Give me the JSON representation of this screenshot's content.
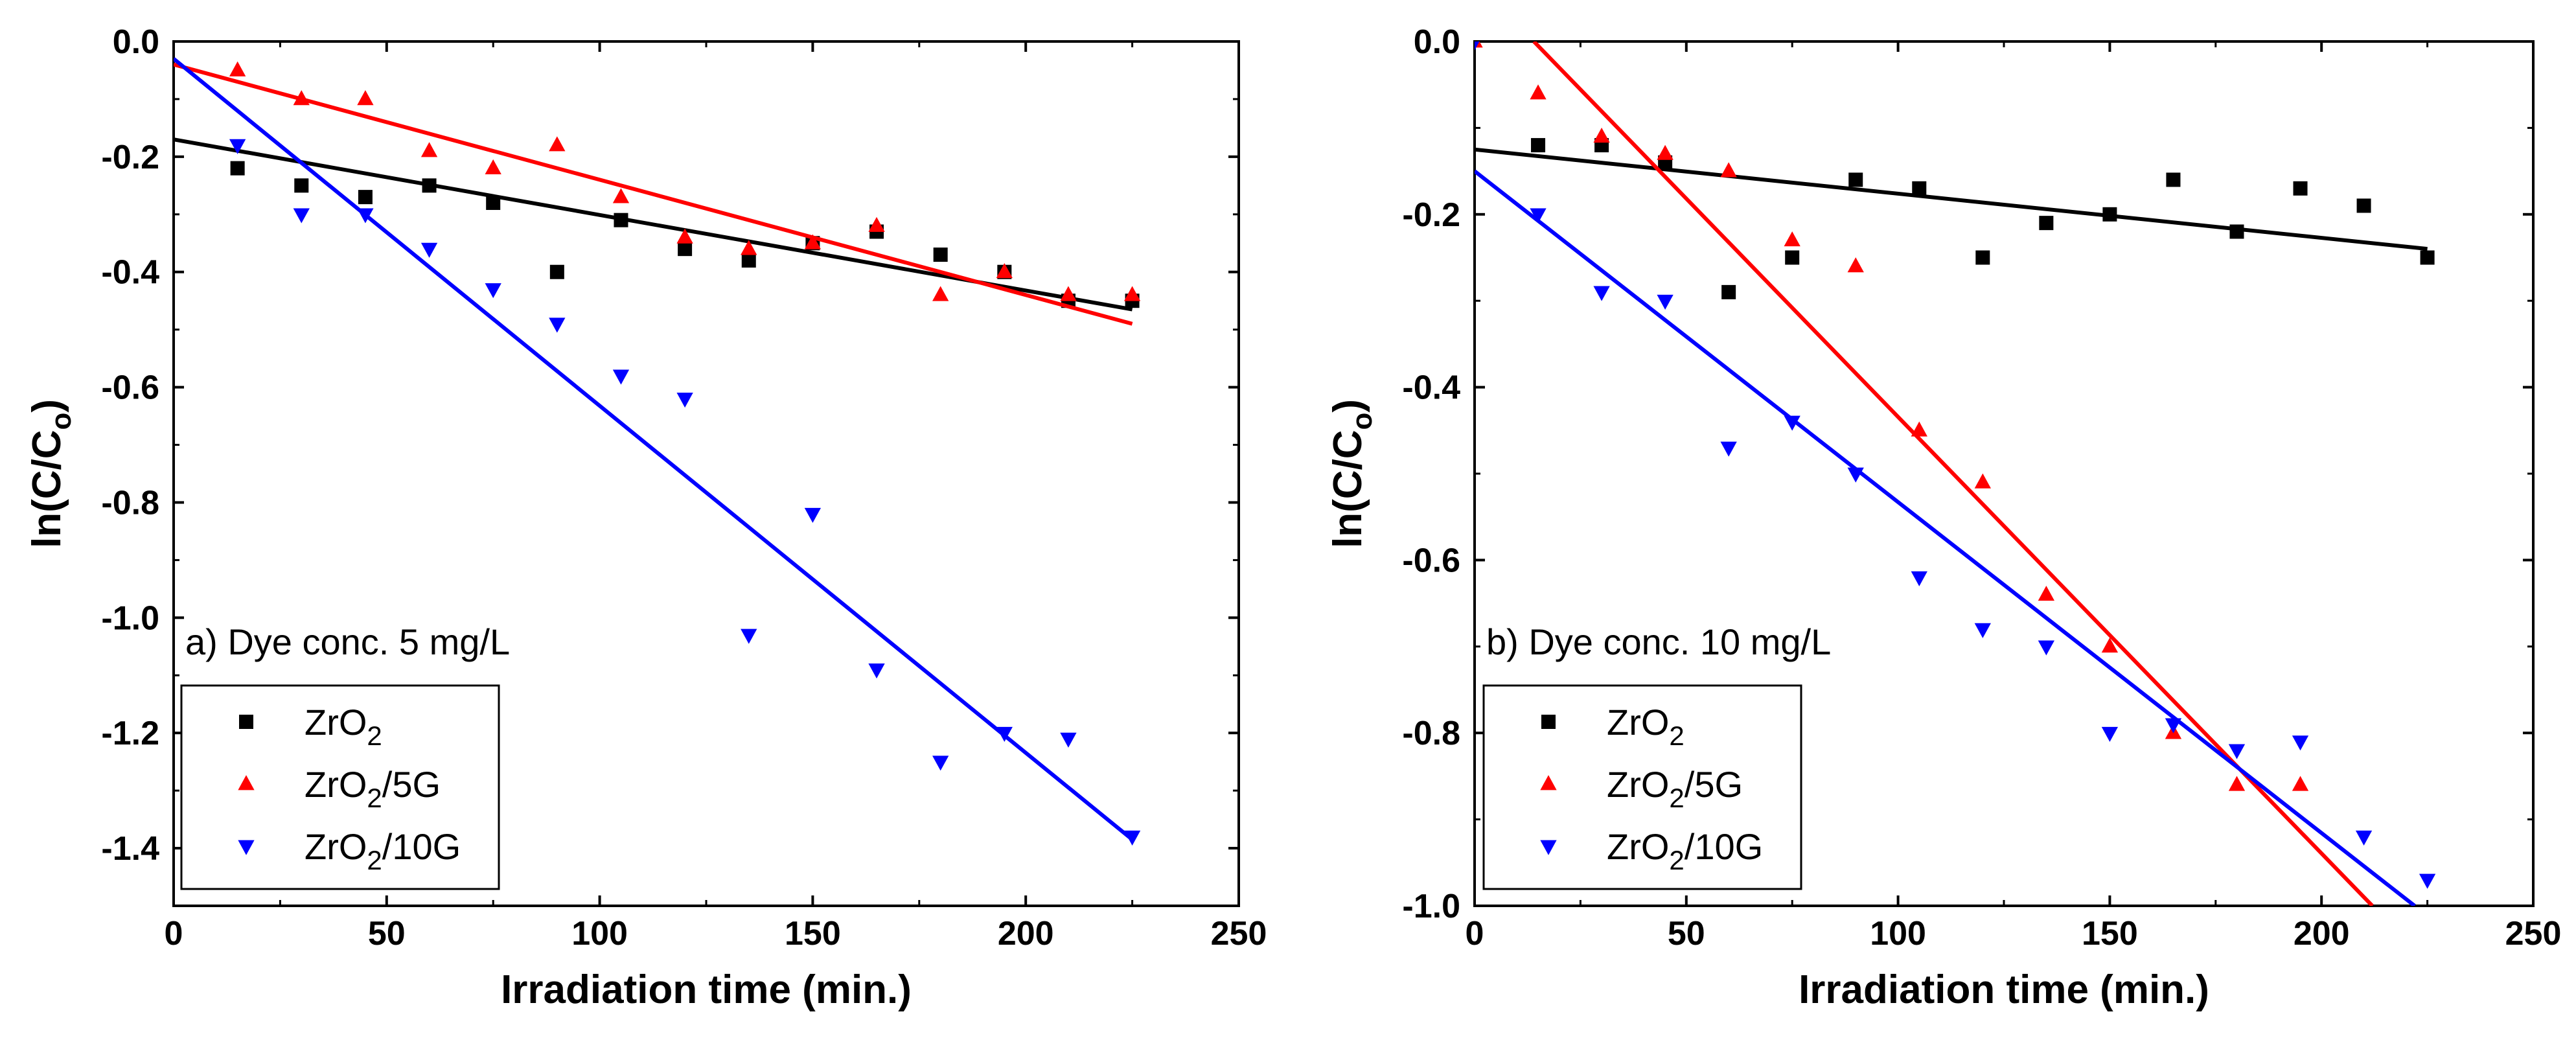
{
  "chart_data": [
    {
      "id": "a",
      "type": "scatter",
      "panel_label": "a) Dye conc. 5 mg/L",
      "xlabel": "Irradiation time (min.)",
      "ylabel": "ln(C/C",
      "ylabel_sub": "o",
      "ylabel_close": ")",
      "xlim": [
        0,
        250
      ],
      "ylim": [
        -1.5,
        0.0
      ],
      "xticks": [
        0,
        50,
        100,
        150,
        200,
        250
      ],
      "yticks": [
        0.0,
        -0.2,
        -0.4,
        -0.6,
        -0.8,
        -1.0,
        -1.2,
        -1.4
      ],
      "ytick_labels": [
        "0.0",
        "-0.2",
        "-0.4",
        "-0.6",
        "-0.8",
        "-1.0",
        "-1.2",
        "-1.4"
      ],
      "legend_position": "bottom-left",
      "series": [
        {
          "name": "ZrO",
          "name_sub": "2",
          "name_suffix": "",
          "color": "#000000",
          "marker": "square",
          "x": [
            15,
            30,
            45,
            60,
            75,
            90,
            105,
            120,
            135,
            150,
            165,
            180,
            195,
            210,
            225
          ],
          "y": [
            -0.22,
            -0.25,
            -0.27,
            -0.25,
            -0.28,
            -0.4,
            -0.31,
            -0.36,
            -0.38,
            -0.35,
            -0.33,
            -0.37,
            -0.4,
            -0.45,
            -0.45
          ],
          "fit": [
            [
              0,
              -0.17
            ],
            [
              225,
              -0.465
            ]
          ]
        },
        {
          "name": "ZrO",
          "name_sub": "2",
          "name_suffix": "/5G",
          "color": "#ff0000",
          "marker": "triangle-up",
          "x": [
            15,
            30,
            45,
            60,
            75,
            90,
            105,
            120,
            135,
            150,
            165,
            180,
            195,
            210,
            225
          ],
          "y": [
            -0.05,
            -0.1,
            -0.1,
            -0.19,
            -0.22,
            -0.18,
            -0.27,
            -0.34,
            -0.36,
            -0.35,
            -0.32,
            -0.44,
            -0.4,
            -0.44,
            -0.44
          ],
          "fit": [
            [
              0,
              -0.04
            ],
            [
              225,
              -0.49
            ]
          ]
        },
        {
          "name": "ZrO",
          "name_sub": "2",
          "name_suffix": "/10G",
          "color": "#0000ff",
          "marker": "triangle-down",
          "x": [
            15,
            30,
            45,
            60,
            75,
            90,
            105,
            120,
            135,
            150,
            165,
            180,
            195,
            210,
            225
          ],
          "y": [
            -0.18,
            -0.3,
            -0.3,
            -0.36,
            -0.43,
            -0.49,
            -0.58,
            -0.62,
            -1.03,
            -0.82,
            -1.09,
            -1.25,
            -1.2,
            -1.21,
            -1.38
          ],
          "fit": [
            [
              0,
              -0.03
            ],
            [
              225,
              -1.385
            ]
          ]
        }
      ]
    },
    {
      "id": "b",
      "type": "scatter",
      "panel_label": "b) Dye conc. 10 mg/L",
      "xlabel": "Irradiation time (min.)",
      "ylabel": "ln(C/C",
      "ylabel_sub": "o",
      "ylabel_close": ")",
      "xlim": [
        0,
        250
      ],
      "ylim": [
        -1.0,
        0.0
      ],
      "xticks": [
        0,
        50,
        100,
        150,
        200,
        250
      ],
      "yticks": [
        0.0,
        -0.2,
        -0.4,
        -0.6,
        -0.8,
        -1.0
      ],
      "ytick_labels": [
        "0.0",
        "-0.2",
        "-0.4",
        "-0.6",
        "-0.8",
        "-1.0"
      ],
      "legend_position": "bottom-left",
      "series": [
        {
          "name": "ZrO",
          "name_sub": "2",
          "name_suffix": "",
          "color": "#000000",
          "marker": "square",
          "x": [
            15,
            30,
            45,
            60,
            75,
            90,
            105,
            120,
            135,
            150,
            165,
            180,
            195,
            210,
            225
          ],
          "y": [
            -0.12,
            -0.12,
            -0.14,
            -0.29,
            -0.25,
            -0.16,
            -0.17,
            -0.25,
            -0.21,
            -0.2,
            -0.16,
            -0.22,
            -0.17,
            -0.19,
            -0.25
          ],
          "fit": [
            [
              0,
              -0.125
            ],
            [
              225,
              -0.24
            ]
          ]
        },
        {
          "name": "ZrO",
          "name_sub": "2",
          "name_suffix": "/5G",
          "color": "#ff0000",
          "marker": "triangle-up",
          "x": [
            0,
            15,
            30,
            45,
            60,
            75,
            90,
            105,
            120,
            135,
            150,
            165,
            180,
            195
          ],
          "y": [
            0.0,
            -0.06,
            -0.11,
            -0.13,
            -0.15,
            -0.23,
            -0.26,
            -0.45,
            -0.51,
            -0.64,
            -0.7,
            -0.8,
            -0.86,
            -0.86
          ],
          "fit": [
            [
              14,
              0.0
            ],
            [
              212,
              -1.0
            ]
          ]
        },
        {
          "name": "ZrO",
          "name_sub": "2",
          "name_suffix": "/10G",
          "color": "#0000ff",
          "marker": "triangle-down",
          "x": [
            0,
            15,
            30,
            45,
            60,
            75,
            90,
            105,
            120,
            135,
            150,
            165,
            180,
            195,
            210,
            225
          ],
          "y": [
            0.0,
            -0.2,
            -0.29,
            -0.3,
            -0.47,
            -0.44,
            -0.5,
            -0.62,
            -0.68,
            -0.7,
            -0.8,
            -0.79,
            -0.82,
            -0.81,
            -0.92,
            -0.97
          ],
          "fit": [
            [
              0,
              -0.15
            ],
            [
              222,
              -1.0
            ]
          ]
        }
      ]
    }
  ]
}
